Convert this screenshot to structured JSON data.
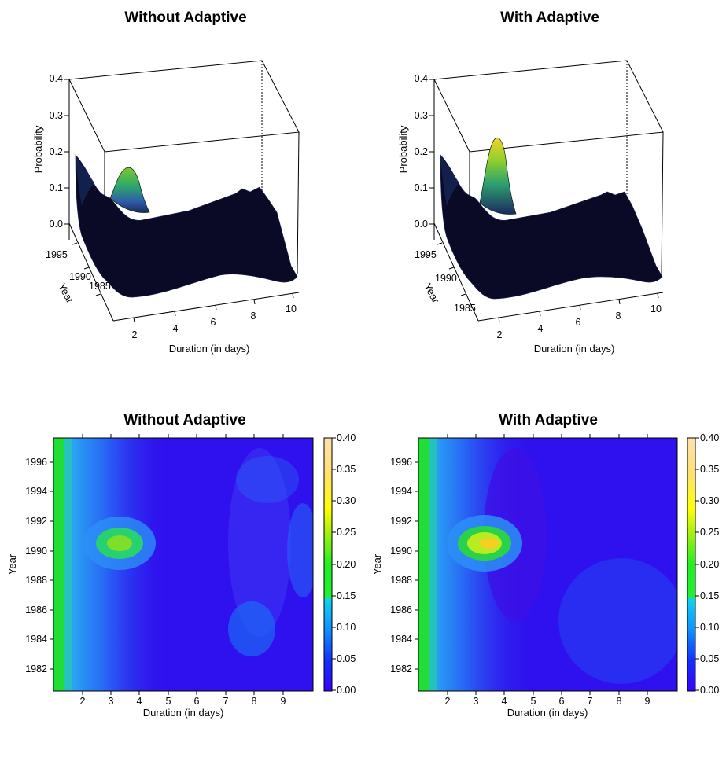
{
  "chart_data": [
    {
      "type": "surface3d",
      "title": "Without Adaptive",
      "xlabel": "Duration (in days)",
      "ylabel": "Year",
      "zlabel": "Probability",
      "x_ticks": [
        "2",
        "4",
        "6",
        "8",
        "10"
      ],
      "y_ticks": [
        "1985",
        "1990",
        "1995"
      ],
      "z_ticks": [
        "0.0",
        "0.1",
        "0.2",
        "0.3",
        "0.4"
      ],
      "xlim": [
        1,
        10
      ],
      "ylim": [
        1981,
        1998
      ],
      "zlim": [
        0,
        0.4
      ],
      "peak": {
        "duration": 3.3,
        "year": 1991.8,
        "probability": 0.2
      }
    },
    {
      "type": "surface3d",
      "title": "With Adaptive",
      "xlabel": "Duration (in days)",
      "ylabel": "Year",
      "zlabel": "Probability",
      "x_ticks": [
        "2",
        "4",
        "6",
        "8",
        "10"
      ],
      "y_ticks": [
        "1985",
        "1990",
        "1995"
      ],
      "z_ticks": [
        "0.0",
        "0.1",
        "0.2",
        "0.3",
        "0.4"
      ],
      "xlim": [
        1,
        10
      ],
      "ylim": [
        1981,
        1998
      ],
      "zlim": [
        0,
        0.4
      ],
      "peak": {
        "duration": 3.5,
        "year": 1991.8,
        "probability": 0.3
      }
    },
    {
      "type": "heatmap",
      "title": "Without Adaptive",
      "xlabel": "Duration (in days)",
      "ylabel": "Year",
      "x_ticks": [
        "2",
        "3",
        "4",
        "5",
        "6",
        "7",
        "8",
        "9"
      ],
      "y_ticks": [
        "1982",
        "1984",
        "1986",
        "1988",
        "1990",
        "1992",
        "1994",
        "1996"
      ],
      "xlim": [
        1,
        10
      ],
      "ylim": [
        1981,
        1998
      ],
      "colorbar_ticks": [
        "0.00",
        "0.05",
        "0.10",
        "0.15",
        "0.20",
        "0.25",
        "0.30",
        "0.35",
        "0.40"
      ],
      "colorbar_range": [
        0,
        0.4
      ],
      "peak": {
        "duration": 3.3,
        "year": 1991.8,
        "probability": 0.2
      }
    },
    {
      "type": "heatmap",
      "title": "With Adaptive",
      "xlabel": "Duration (in days)",
      "ylabel": "Year",
      "x_ticks": [
        "2",
        "3",
        "4",
        "5",
        "6",
        "7",
        "8",
        "9"
      ],
      "y_ticks": [
        "1982",
        "1984",
        "1986",
        "1988",
        "1990",
        "1992",
        "1994",
        "1996"
      ],
      "xlim": [
        1,
        10
      ],
      "ylim": [
        1981,
        1998
      ],
      "colorbar_ticks": [
        "0.00",
        "0.05",
        "0.10",
        "0.15",
        "0.20",
        "0.25",
        "0.30",
        "0.35",
        "0.40"
      ],
      "colorbar_range": [
        0,
        0.4
      ],
      "peak": {
        "duration": 3.5,
        "year": 1991.8,
        "probability": 0.3
      }
    }
  ]
}
